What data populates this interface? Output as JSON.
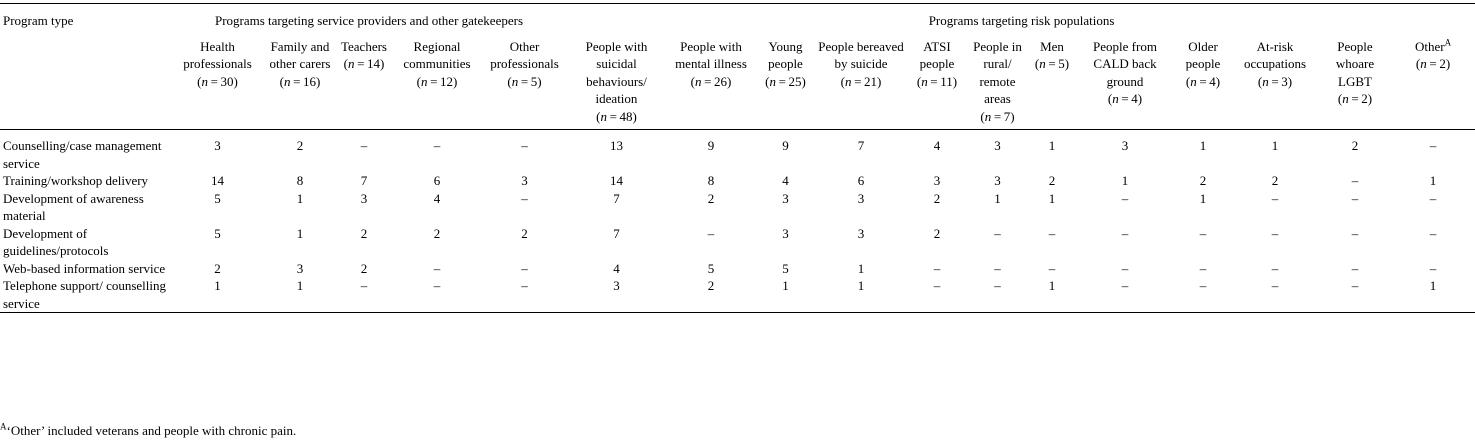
{
  "header": {
    "program_type": "Program type",
    "group_providers": "Programs targeting service providers and other gatekeepers",
    "group_risk": "Programs targeting risk populations",
    "columns": [
      {
        "name": "Health professionals",
        "n": "30"
      },
      {
        "name": "Family and other carers",
        "n": "16"
      },
      {
        "name": "Teachers",
        "n": "14"
      },
      {
        "name": "Regional communities",
        "n": "12"
      },
      {
        "name": "Other professionals",
        "n": "5"
      },
      {
        "name": "People with suicidal behaviours/ ideation",
        "n": "48"
      },
      {
        "name": "People with mental illness",
        "n": "26"
      },
      {
        "name": "Young people",
        "n": "25"
      },
      {
        "name": "People bereaved by suicide",
        "n": "21"
      },
      {
        "name": "ATSI people",
        "n": "11"
      },
      {
        "name": "People in rural/ remote areas",
        "n": "7"
      },
      {
        "name": "Men",
        "n": "5"
      },
      {
        "name": "People from CALD back ground",
        "n": "4"
      },
      {
        "name": "Older people",
        "n": "4"
      },
      {
        "name": "At-risk occupations",
        "n": "3"
      },
      {
        "name": "People whoare LGBT",
        "n": "2"
      },
      {
        "name": "Other",
        "n": "2",
        "sup": "A"
      }
    ]
  },
  "rows": [
    {
      "label": "Counselling/case management service",
      "values": [
        "3",
        "2",
        "–",
        "–",
        "–",
        "13",
        "9",
        "9",
        "7",
        "4",
        "3",
        "1",
        "3",
        "1",
        "1",
        "2",
        "–"
      ]
    },
    {
      "label": "Training/workshop delivery",
      "values": [
        "14",
        "8",
        "7",
        "6",
        "3",
        "14",
        "8",
        "4",
        "6",
        "3",
        "3",
        "2",
        "1",
        "2",
        "2",
        "–",
        "1"
      ]
    },
    {
      "label": "Development of awareness material",
      "values": [
        "5",
        "1",
        "3",
        "4",
        "–",
        "7",
        "2",
        "3",
        "3",
        "2",
        "1",
        "1",
        "–",
        "1",
        "–",
        "–",
        "–"
      ]
    },
    {
      "label": "Development of guidelines/protocols",
      "values": [
        "5",
        "1",
        "2",
        "2",
        "2",
        "7",
        "–",
        "3",
        "3",
        "2",
        "–",
        "–",
        "–",
        "–",
        "–",
        "–",
        "–"
      ]
    },
    {
      "label": "Web-based information service",
      "values": [
        "2",
        "3",
        "2",
        "–",
        "–",
        "4",
        "5",
        "5",
        "1",
        "–",
        "–",
        "–",
        "–",
        "–",
        "–",
        "–",
        "–"
      ]
    },
    {
      "label": "Telephone support/ counselling service",
      "values": [
        "1",
        "1",
        "–",
        "–",
        "–",
        "3",
        "2",
        "1",
        "1",
        "–",
        "–",
        "1",
        "–",
        "–",
        "–",
        "–",
        "1"
      ]
    }
  ],
  "footnote": {
    "marker": "A",
    "text": "‘Other’ included veterans and people with chronic pain."
  }
}
